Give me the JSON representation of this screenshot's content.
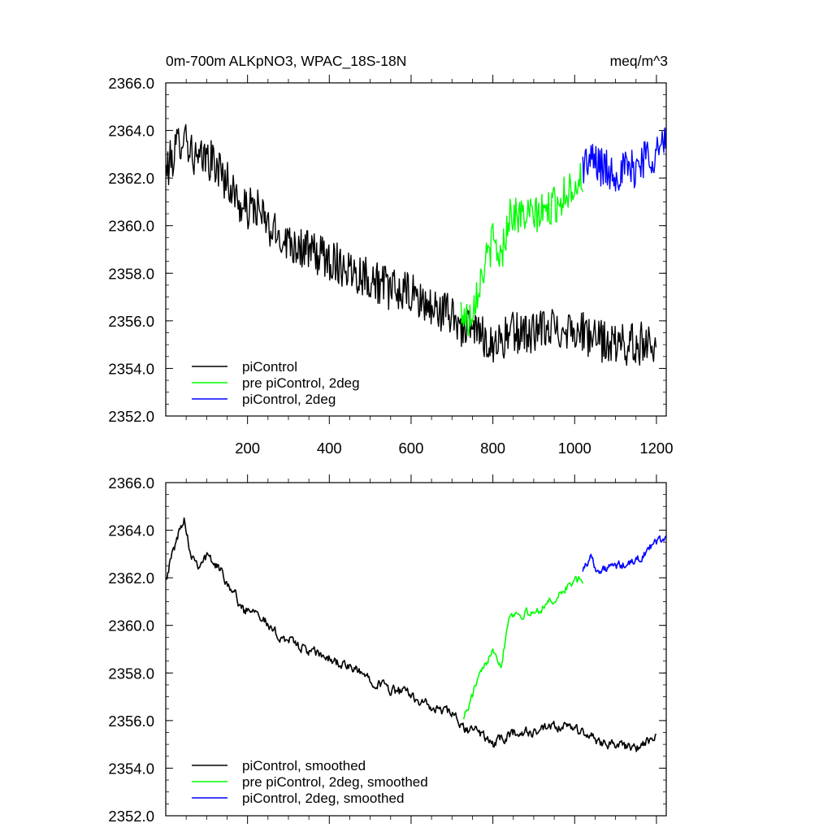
{
  "chart_data": [
    {
      "type": "line",
      "title_left": "0m-700m ALKpNO3, WPAC_18S-18N",
      "title_right": "meq/m^3",
      "xlim": [
        0,
        1224
      ],
      "ylim": [
        2352,
        2366
      ],
      "x_ticks": [
        200,
        400,
        600,
        800,
        1000,
        1200
      ],
      "x_tick_labels": [
        "200",
        "400",
        "600",
        "800",
        "1000",
        "1200"
      ],
      "y_ticks": [
        2352,
        2354,
        2356,
        2358,
        2360,
        2362,
        2364,
        2366
      ],
      "y_tick_labels": [
        "2352.0",
        "2354.0",
        "2356.0",
        "2358.0",
        "2360.0",
        "2362.0",
        "2364.0",
        "2366.0"
      ],
      "legend_position": "bottom-left",
      "series": [
        {
          "name": "piControl",
          "color": "#000000",
          "x_range": [
            1,
            1200
          ],
          "anchors": [
            [
              1,
              2362.3
            ],
            [
              25,
              2363.2
            ],
            [
              45,
              2364.0
            ],
            [
              60,
              2363.2
            ],
            [
              80,
              2362.6
            ],
            [
              100,
              2362.9
            ],
            [
              130,
              2362.4
            ],
            [
              160,
              2361.6
            ],
            [
              190,
              2360.6
            ],
            [
              220,
              2360.8
            ],
            [
              260,
              2359.7
            ],
            [
              300,
              2359.4
            ],
            [
              350,
              2358.9
            ],
            [
              400,
              2358.6
            ],
            [
              450,
              2358.2
            ],
            [
              500,
              2357.8
            ],
            [
              550,
              2357.3
            ],
            [
              600,
              2357.1
            ],
            [
              650,
              2356.5
            ],
            [
              700,
              2356.3
            ],
            [
              730,
              2355.6
            ],
            [
              760,
              2355.6
            ],
            [
              800,
              2355.0
            ],
            [
              850,
              2355.5
            ],
            [
              900,
              2355.5
            ],
            [
              950,
              2355.7
            ],
            [
              1000,
              2355.7
            ],
            [
              1050,
              2355.2
            ],
            [
              1100,
              2355.0
            ],
            [
              1150,
              2355.0
            ],
            [
              1200,
              2355.2
            ]
          ],
          "noise_amplitude": 0.9
        },
        {
          "name": "pre piControl, 2deg",
          "color": "#00ff00",
          "x_range": [
            720,
            1020
          ],
          "anchors": [
            [
              720,
              2356.5
            ],
            [
              740,
              2356.0
            ],
            [
              760,
              2357.2
            ],
            [
              780,
              2358.3
            ],
            [
              800,
              2359.4
            ],
            [
              820,
              2358.6
            ],
            [
              840,
              2360.5
            ],
            [
              870,
              2360.4
            ],
            [
              900,
              2360.4
            ],
            [
              930,
              2360.6
            ],
            [
              960,
              2361.0
            ],
            [
              990,
              2361.6
            ],
            [
              1020,
              2362.0
            ]
          ],
          "noise_amplitude": 0.8
        },
        {
          "name": "piControl, 2deg",
          "color": "#0000ff",
          "x_range": [
            1020,
            1224
          ],
          "anchors": [
            [
              1020,
              2362.6
            ],
            [
              1050,
              2362.7
            ],
            [
              1080,
              2362.3
            ],
            [
              1110,
              2362.3
            ],
            [
              1140,
              2362.3
            ],
            [
              1170,
              2362.9
            ],
            [
              1200,
              2363.1
            ],
            [
              1224,
              2363.4
            ]
          ],
          "noise_amplitude": 0.9
        }
      ]
    },
    {
      "type": "line",
      "xlim": [
        0,
        1224
      ],
      "ylim": [
        2352,
        2366
      ],
      "y_ticks": [
        2352,
        2354,
        2356,
        2358,
        2360,
        2362,
        2364,
        2366
      ],
      "y_tick_labels": [
        "2352.0",
        "2354.0",
        "2356.0",
        "2358.0",
        "2360.0",
        "2362.0",
        "2364.0",
        "2366.0"
      ],
      "legend_position": "bottom-left",
      "series": [
        {
          "name": "piControl, smoothed",
          "color": "#000000",
          "x_range": [
            1,
            1200
          ],
          "anchors": [
            [
              1,
              2362.1
            ],
            [
              25,
              2363.5
            ],
            [
              45,
              2364.6
            ],
            [
              60,
              2363.1
            ],
            [
              80,
              2362.6
            ],
            [
              100,
              2362.9
            ],
            [
              130,
              2362.4
            ],
            [
              160,
              2361.6
            ],
            [
              190,
              2360.6
            ],
            [
              220,
              2360.8
            ],
            [
              260,
              2359.7
            ],
            [
              300,
              2359.4
            ],
            [
              350,
              2358.9
            ],
            [
              400,
              2358.6
            ],
            [
              450,
              2358.2
            ],
            [
              500,
              2357.8
            ],
            [
              550,
              2357.3
            ],
            [
              600,
              2357.1
            ],
            [
              650,
              2356.5
            ],
            [
              700,
              2356.3
            ],
            [
              730,
              2355.6
            ],
            [
              760,
              2355.6
            ],
            [
              800,
              2355.0
            ],
            [
              850,
              2355.5
            ],
            [
              900,
              2355.5
            ],
            [
              950,
              2355.7
            ],
            [
              1000,
              2355.7
            ],
            [
              1050,
              2355.2
            ],
            [
              1100,
              2355.0
            ],
            [
              1150,
              2354.8
            ],
            [
              1200,
              2355.3
            ]
          ],
          "noise_amplitude": 0.4
        },
        {
          "name": "pre piControl, 2deg, smoothed",
          "color": "#00ff00",
          "x_range": [
            728,
            1020
          ],
          "anchors": [
            [
              728,
              2356.2
            ],
            [
              740,
              2356.5
            ],
            [
              760,
              2357.6
            ],
            [
              780,
              2358.2
            ],
            [
              800,
              2359.2
            ],
            [
              820,
              2358.3
            ],
            [
              840,
              2360.5
            ],
            [
              870,
              2360.5
            ],
            [
              900,
              2360.5
            ],
            [
              930,
              2360.9
            ],
            [
              960,
              2361.2
            ],
            [
              990,
              2361.8
            ],
            [
              1020,
              2361.9
            ]
          ],
          "noise_amplitude": 0.35
        },
        {
          "name": "piControl, 2deg, smoothed",
          "color": "#0000ff",
          "x_range": [
            1020,
            1224
          ],
          "anchors": [
            [
              1020,
              2362.4
            ],
            [
              1040,
              2362.9
            ],
            [
              1060,
              2362.2
            ],
            [
              1080,
              2362.4
            ],
            [
              1110,
              2362.5
            ],
            [
              1140,
              2362.6
            ],
            [
              1170,
              2363.0
            ],
            [
              1200,
              2363.5
            ],
            [
              1224,
              2363.7
            ]
          ],
          "noise_amplitude": 0.35
        }
      ]
    }
  ]
}
